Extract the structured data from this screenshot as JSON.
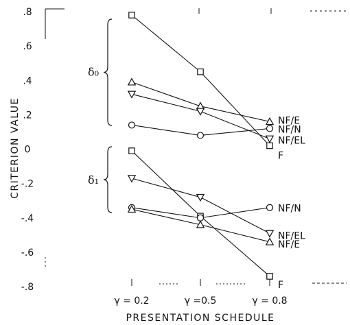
{
  "chart_data": {
    "type": "line",
    "title": "",
    "xlabel": "PRESENTATION SCHEDULE",
    "ylabel": "CRITERION VALUE",
    "x": [
      0.2,
      0.5,
      0.8
    ],
    "categories": [
      "γ = 0.2",
      "γ =0.5",
      "γ = 0.8"
    ],
    "ylim": [
      -0.8,
      0.8
    ],
    "yticks": [
      ".8",
      ".6",
      ".4",
      ".2",
      "0",
      "-.2",
      "-.4",
      "-.6",
      "-.8"
    ],
    "grid": false,
    "legend": "none",
    "groups": [
      {
        "label": "δ₀",
        "series": [
          {
            "name": "F",
            "marker": "square",
            "values": [
              0.78,
              0.45,
              0.02
            ]
          },
          {
            "name": "NF/E",
            "marker": "triangle-up",
            "values": [
              0.39,
              0.25,
              0.16
            ]
          },
          {
            "name": "NF/EL",
            "marker": "triangle-down",
            "values": [
              0.32,
              0.22,
              0.06
            ]
          },
          {
            "name": "NF/N",
            "marker": "circle",
            "values": [
              0.14,
              0.08,
              0.12
            ]
          }
        ]
      },
      {
        "label": "δ₁",
        "series": [
          {
            "name": "F",
            "marker": "square",
            "values": [
              -0.01,
              -0.39,
              -0.74
            ]
          },
          {
            "name": "NF/EL",
            "marker": "triangle-down",
            "values": [
              -0.17,
              -0.28,
              -0.49
            ]
          },
          {
            "name": "NF/N",
            "marker": "circle",
            "values": [
              -0.34,
              -0.4,
              -0.34
            ]
          },
          {
            "name": "NF/E",
            "marker": "triangle-up",
            "values": [
              -0.35,
              -0.44,
              -0.54
            ]
          }
        ]
      }
    ]
  },
  "colors": {
    "ink": "#111111",
    "background": "#ffffff"
  }
}
